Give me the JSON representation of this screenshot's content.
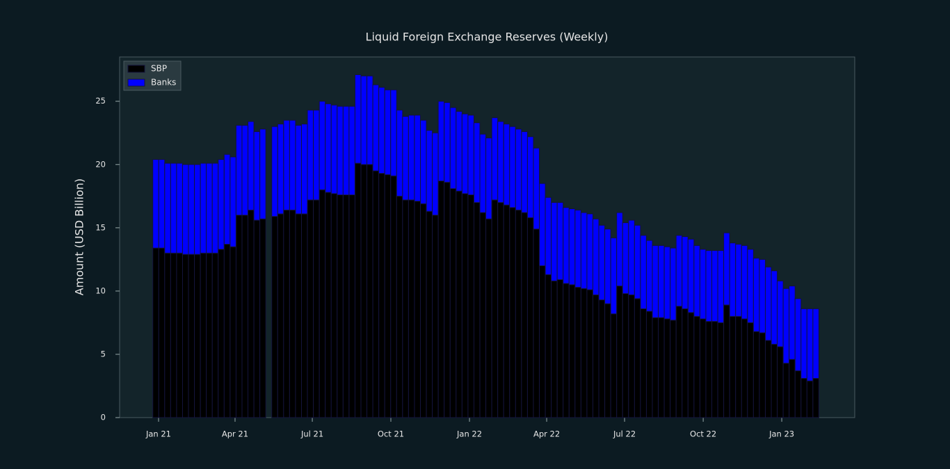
{
  "chart_data": {
    "type": "stacked_bar",
    "title": "Liquid Foreign Exchange Reserves (Weekly)",
    "y_label": "Amount (USD Billion)",
    "categories": [
      null,
      null,
      null,
      null,
      null,
      null,
      null,
      null,
      null,
      null,
      null,
      null,
      null,
      null,
      null,
      null,
      null,
      null,
      null,
      null,
      null,
      null,
      null,
      null,
      null,
      null,
      null,
      null,
      null,
      null,
      null,
      null,
      null,
      null,
      null,
      null,
      null,
      null,
      null,
      null,
      null,
      null,
      null,
      null,
      null,
      null,
      null,
      null,
      null,
      null,
      null,
      null,
      null,
      null,
      null,
      null,
      null,
      null,
      null,
      null,
      null,
      null,
      null,
      null,
      null,
      null,
      null,
      null,
      null,
      null,
      null,
      null,
      null,
      null,
      null,
      null,
      null,
      null,
      null,
      null,
      null,
      null,
      null,
      null,
      null,
      null,
      null,
      null,
      null,
      null,
      null,
      null,
      null,
      null,
      null,
      null,
      null,
      null,
      null,
      null,
      null,
      null,
      null,
      null,
      null,
      null,
      null,
      null,
      null,
      null,
      null,
      null
    ],
    "series": [
      {
        "name": "SBP",
        "color": "#000000",
        "values": [
          13.4,
          13.4,
          13.0,
          13.0,
          13.0,
          12.9,
          12.9,
          12.9,
          13.0,
          13.0,
          13.0,
          13.3,
          13.7,
          13.5,
          16.0,
          16.0,
          16.4,
          15.6,
          15.7,
          null,
          15.9,
          16.1,
          16.4,
          16.4,
          16.1,
          16.1,
          17.2,
          17.2,
          18.0,
          17.8,
          17.7,
          17.6,
          17.6,
          17.6,
          20.1,
          20.0,
          20.0,
          19.5,
          19.3,
          19.2,
          19.1,
          17.5,
          17.2,
          17.2,
          17.1,
          16.9,
          16.3,
          16.0,
          18.7,
          18.6,
          18.1,
          17.9,
          17.7,
          17.6,
          17.0,
          16.2,
          15.7,
          17.2,
          17.0,
          16.8,
          16.6,
          16.4,
          16.2,
          15.8,
          14.9,
          12.0,
          11.3,
          10.8,
          10.9,
          10.6,
          10.5,
          10.3,
          10.2,
          10.1,
          9.7,
          9.3,
          9.0,
          8.2,
          10.4,
          9.8,
          9.7,
          9.4,
          8.6,
          8.4,
          7.9,
          7.9,
          7.8,
          7.7,
          8.8,
          8.6,
          8.3,
          8.0,
          7.8,
          7.6,
          7.6,
          7.5,
          8.9,
          8.0,
          8.0,
          7.8,
          7.5,
          6.8,
          6.7,
          6.1,
          5.8,
          5.6,
          4.3,
          4.6,
          3.7,
          3.1,
          2.9,
          3.1
        ]
      },
      {
        "name": "Banks",
        "color": "#0000ff",
        "values": [
          7.0,
          7.0,
          7.1,
          7.1,
          7.1,
          7.1,
          7.1,
          7.1,
          7.1,
          7.1,
          7.1,
          7.1,
          7.1,
          7.1,
          7.1,
          7.1,
          7.0,
          7.0,
          7.1,
          null,
          7.1,
          7.1,
          7.1,
          7.1,
          7.0,
          7.1,
          7.1,
          7.1,
          7.0,
          7.0,
          7.0,
          7.0,
          7.0,
          7.0,
          7.0,
          7.0,
          7.0,
          6.8,
          6.8,
          6.7,
          6.8,
          6.8,
          6.6,
          6.7,
          6.8,
          6.6,
          6.4,
          6.5,
          6.3,
          6.3,
          6.4,
          6.3,
          6.3,
          6.3,
          6.3,
          6.2,
          6.4,
          6.5,
          6.4,
          6.4,
          6.4,
          6.4,
          6.4,
          6.4,
          6.4,
          6.5,
          6.1,
          6.2,
          6.1,
          6.0,
          6.0,
          6.1,
          6.0,
          6.0,
          6.0,
          5.9,
          5.9,
          6.0,
          5.8,
          5.6,
          5.9,
          5.8,
          5.8,
          5.6,
          5.7,
          5.7,
          5.7,
          5.7,
          5.6,
          5.7,
          5.8,
          5.6,
          5.5,
          5.6,
          5.6,
          5.7,
          5.7,
          5.8,
          5.7,
          5.8,
          5.8,
          5.8,
          5.8,
          5.8,
          5.8,
          5.2,
          5.9,
          5.8,
          5.7,
          5.5,
          5.7,
          5.5
        ]
      }
    ],
    "xlim": [
      -6.08,
      117.53
    ],
    "xticks": [
      {
        "value": 0.47,
        "label": "Jan 21"
      },
      {
        "value": 13.33,
        "label": "Apr 21"
      },
      {
        "value": 26.32,
        "label": "Jul 21"
      },
      {
        "value": 39.53,
        "label": "Oct 21"
      },
      {
        "value": 52.75,
        "label": "Jan 22"
      },
      {
        "value": 65.73,
        "label": "Apr 22"
      },
      {
        "value": 78.83,
        "label": "Jul 22"
      },
      {
        "value": 92.05,
        "label": "Oct 22"
      },
      {
        "value": 105.26,
        "label": "Jan 23"
      }
    ],
    "ylim": [
      0,
      28.5
    ],
    "yticks": [
      0,
      5,
      10,
      15,
      20,
      25
    ],
    "legend": "upper left",
    "grid": false
  }
}
